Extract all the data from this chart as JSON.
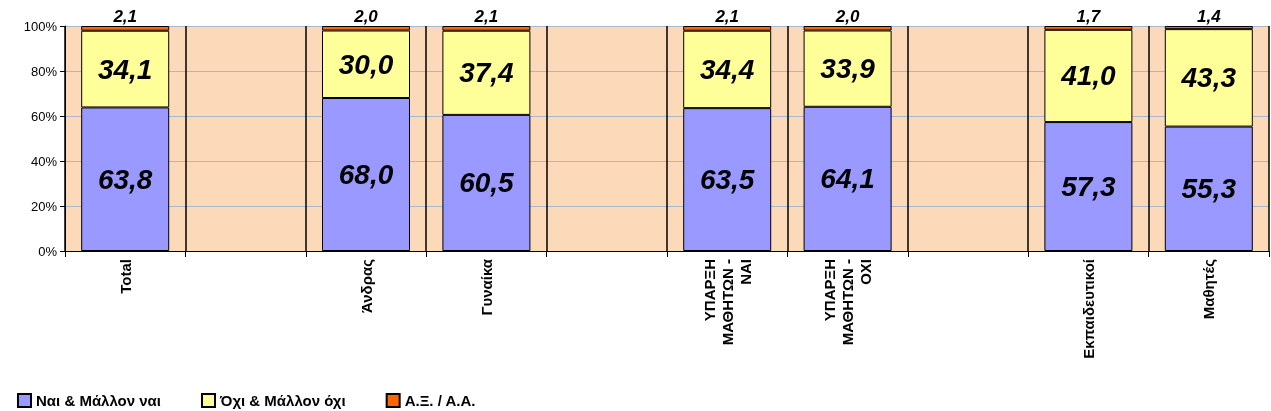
{
  "chart_data": {
    "type": "bar",
    "stacked": true,
    "categories": [
      "Total",
      null,
      "Άνδρας",
      "Γυναίκα",
      null,
      "ΥΠΑΡΞΗ ΜΑΘΗΤΩΝ - ΝΑΙ",
      "ΥΠΑΡΞΗ ΜΑΘΗΤΩΝ - ΟΧΙ",
      null,
      "Εκπαιδευτικοί",
      "Μαθητές"
    ],
    "series": [
      {
        "name": "Ναι & Μάλλον ναι",
        "color": "#9999ff",
        "values": [
          63.8,
          null,
          68.0,
          60.5,
          null,
          63.5,
          64.1,
          null,
          57.3,
          55.3
        ],
        "value_labels": [
          "63,8",
          null,
          "68,0",
          "60,5",
          null,
          "63,5",
          "64,1",
          null,
          "57,3",
          "55,3"
        ]
      },
      {
        "name": "Όχι & Μάλλον όχι",
        "color": "#ffff99",
        "values": [
          34.1,
          null,
          30.0,
          37.4,
          null,
          34.4,
          33.9,
          null,
          41.0,
          43.3
        ],
        "value_labels": [
          "34,1",
          null,
          "30,0",
          "37,4",
          null,
          "34,4",
          "33,9",
          null,
          "41,0",
          "43,3"
        ]
      },
      {
        "name": "Α.Ξ. / Α.Α.",
        "color": "#ff6600",
        "values": [
          2.1,
          null,
          2.0,
          2.1,
          null,
          2.1,
          2.0,
          null,
          1.7,
          1.4
        ],
        "value_labels": [
          "2,1",
          null,
          "2,0",
          "2,1",
          null,
          "2,1",
          "2,0",
          null,
          "1,7",
          "1,4"
        ]
      }
    ],
    "ylim": [
      0,
      100
    ],
    "yticks": [
      {
        "value": 0,
        "label": "0%"
      },
      {
        "value": 20,
        "label": "20%"
      },
      {
        "value": 40,
        "label": "40%"
      },
      {
        "value": 60,
        "label": "60%"
      },
      {
        "value": 80,
        "label": "80%"
      },
      {
        "value": 100,
        "label": "100%"
      }
    ],
    "grid": "y",
    "legend": "bottom left"
  }
}
